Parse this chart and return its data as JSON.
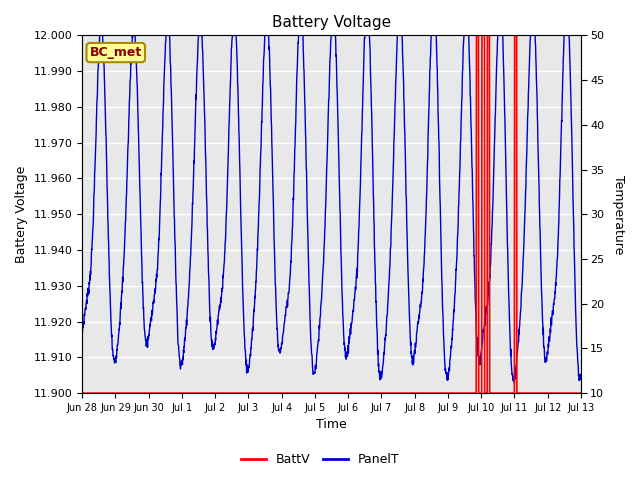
{
  "title": "Battery Voltage",
  "xlabel": "Time",
  "ylabel_left": "Battery Voltage",
  "ylabel_right": "Temperature",
  "ylim_left": [
    11.9,
    12.0
  ],
  "ylim_right": [
    10,
    50
  ],
  "yticks_left": [
    11.9,
    11.91,
    11.92,
    11.93,
    11.94,
    11.95,
    11.96,
    11.97,
    11.98,
    11.99,
    12.0
  ],
  "yticks_right": [
    10,
    15,
    20,
    25,
    30,
    35,
    40,
    45,
    50
  ],
  "xlim": [
    0,
    15
  ],
  "xtick_positions": [
    0,
    1,
    2,
    3,
    4,
    5,
    6,
    7,
    8,
    9,
    10,
    11,
    12,
    13,
    14,
    15
  ],
  "xtick_labels": [
    "Jun 28",
    "Jun 29",
    "Jun 30",
    "Jul 1",
    "Jul 2",
    "Jul 3",
    "Jul 4",
    "Jul 5",
    "Jul 6",
    "Jul 7",
    "Jul 8",
    "Jul 9",
    "Jul 10",
    "Jul 11",
    "Jul 12",
    "Jul 13"
  ],
  "background_color": "#ffffff",
  "plot_bg_color": "#e8e8e8",
  "grid_color": "#ffffff",
  "annotation_label": "BC_met",
  "annotation_bg": "#ffff99",
  "annotation_border": "#aa8800",
  "annotation_text_color": "#880000",
  "batt_color": "#ff0000",
  "panel_color": "#0000cc",
  "legend_batt_label": "BattV",
  "legend_panel_label": "PanelT",
  "figsize": [
    6.4,
    4.8
  ],
  "dpi": 100,
  "batt_spikes": [
    [
      11.85,
      11.92
    ],
    [
      12.02,
      12.1
    ],
    [
      12.18,
      12.25
    ],
    [
      13.0,
      13.07
    ]
  ]
}
